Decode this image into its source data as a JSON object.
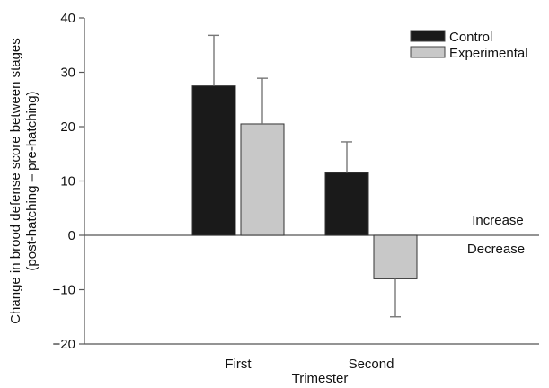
{
  "chart_data": {
    "type": "bar",
    "categories": [
      "First",
      "Second"
    ],
    "series": [
      {
        "name": "Control",
        "values": [
          27.5,
          11.5
        ],
        "errors": [
          9.3,
          5.7
        ],
        "color": "#1a1a1a"
      },
      {
        "name": "Experimental",
        "values": [
          20.5,
          -8
        ],
        "errors": [
          8.4,
          7
        ],
        "color": "#c8c8c8"
      }
    ],
    "title": "",
    "xlabel": "Trimester",
    "ylabel": [
      "Change in brood defense score between stages",
      "(post-hatching – pre-hatching)"
    ],
    "ylim": [
      -20,
      40
    ],
    "yticks": [
      40,
      30,
      20,
      10,
      0,
      -10,
      -20
    ],
    "ytick_labels": [
      "40",
      "30",
      "20",
      "10",
      "0",
      "−10",
      "−20"
    ],
    "annotations": {
      "above_zero": "Increase",
      "below_zero": "Decrease"
    },
    "grid": false,
    "legend": "top-right"
  }
}
